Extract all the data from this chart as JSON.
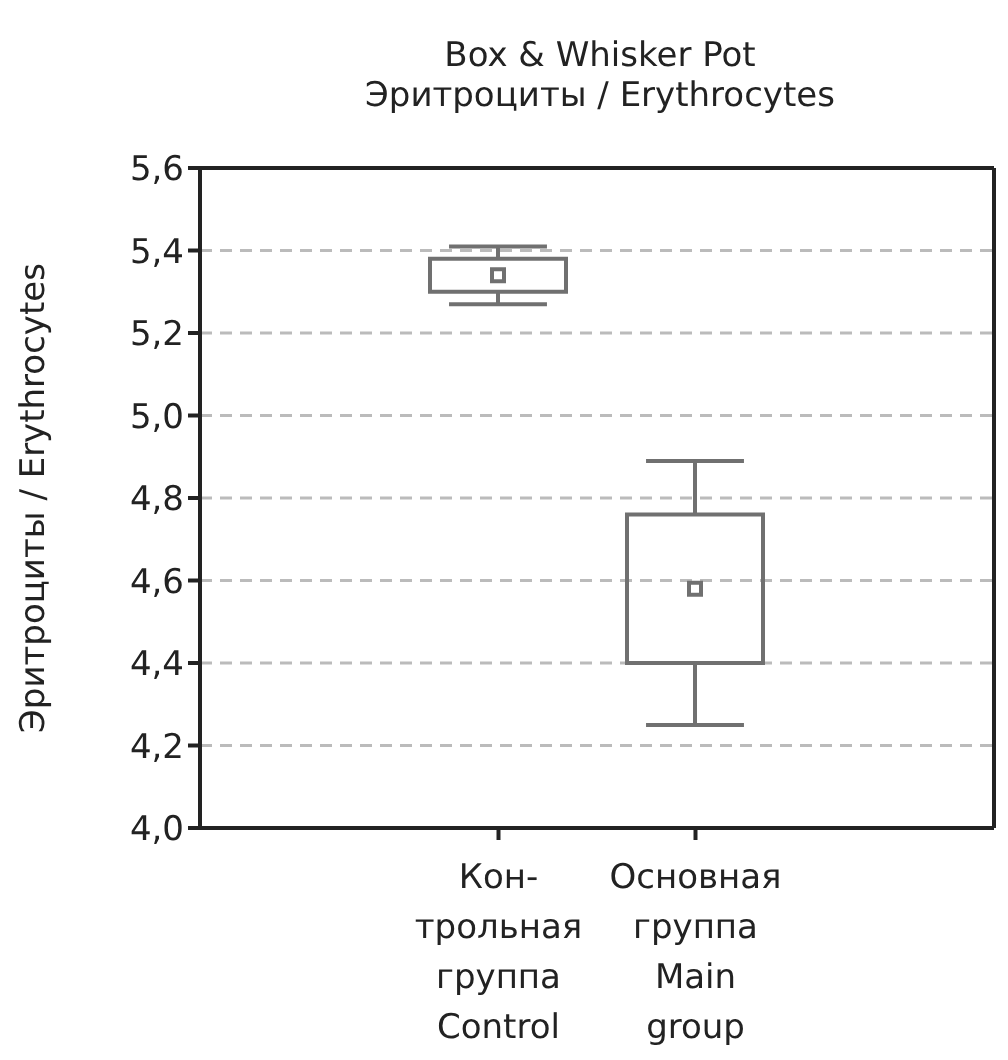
{
  "chart_data": {
    "type": "box",
    "title": "Box & Whisker Pot\nЭритроциты / Erythrocytes",
    "ylabel": "Эритроциты / Erythrocytes",
    "categories": [
      "Кон-\nтрольная\nгруппа\nControl",
      "Основная\nгруппа\nMain\ngroup"
    ],
    "boxes": [
      {
        "low": 5.27,
        "q1": 5.3,
        "median": 5.34,
        "q3": 5.38,
        "high": 5.41
      },
      {
        "low": 4.25,
        "q1": 4.4,
        "median": 4.58,
        "q3": 4.76,
        "high": 4.89
      }
    ],
    "color": "#707070",
    "ylim": [
      4.0,
      5.6
    ],
    "yticks": [
      {
        "value": 4.0,
        "label": "4,0"
      },
      {
        "value": 4.2,
        "label": "4,2"
      },
      {
        "value": 4.4,
        "label": "4,4"
      },
      {
        "value": 4.6,
        "label": "4,6"
      },
      {
        "value": 4.8,
        "label": "4,8"
      },
      {
        "value": 5.0,
        "label": "5,0"
      },
      {
        "value": 5.2,
        "label": "5,2"
      },
      {
        "value": 5.4,
        "label": "5,4"
      },
      {
        "value": 5.6,
        "label": "5,6"
      }
    ],
    "grid": "y"
  }
}
